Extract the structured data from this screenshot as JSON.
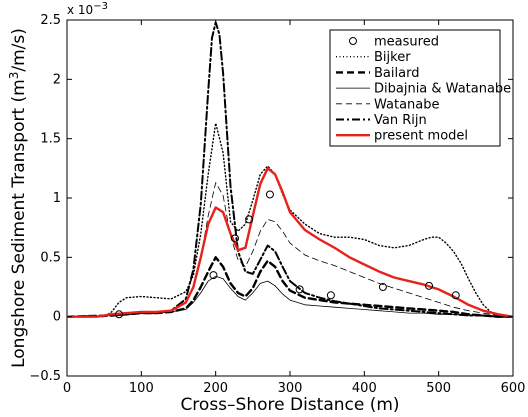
{
  "chart_data": {
    "type": "line",
    "xlabel": "Cross–Shore Distance (m)",
    "ylabel_main": "Longshore Sediment Transport (m",
    "ylabel_sup": "3",
    "ylabel_end": "/m/s)",
    "y_scale_label": "x 10",
    "y_scale_exp": "−3",
    "xlim": [
      0,
      600
    ],
    "ylim": [
      -0.5,
      2.5
    ],
    "x_ticks": [
      0,
      100,
      200,
      300,
      400,
      500,
      600
    ],
    "x_tick_labels": [
      "0",
      "100",
      "200",
      "300",
      "400",
      "500",
      "600"
    ],
    "y_ticks": [
      -0.5,
      0,
      0.5,
      1,
      1.5,
      2,
      2.5
    ],
    "y_tick_labels": [
      "−0.5",
      "0",
      "0.5",
      "1",
      "1.5",
      "2",
      "2.5"
    ],
    "grid": false,
    "legend_position": "top-right",
    "series": [
      {
        "name": "measured",
        "style": "marker",
        "color": "#000000",
        "x": [
          70,
          197,
          226,
          245,
          273,
          313,
          355,
          425,
          487,
          523
        ],
        "y": [
          0.02,
          0.35,
          0.66,
          0.82,
          1.03,
          0.23,
          0.18,
          0.25,
          0.26,
          0.18
        ]
      },
      {
        "name": "Bijker",
        "style": "dotted",
        "color": "#000000",
        "x": [
          0,
          50,
          60,
          70,
          80,
          100,
          120,
          140,
          160,
          170,
          180,
          190,
          200,
          210,
          220,
          230,
          240,
          250,
          260,
          270,
          280,
          290,
          300,
          320,
          340,
          360,
          380,
          400,
          420,
          440,
          460,
          480,
          490,
          500,
          510,
          520,
          530,
          540,
          550,
          560,
          570,
          580,
          590,
          600
        ],
        "y": [
          0,
          0,
          0.04,
          0.12,
          0.16,
          0.17,
          0.16,
          0.15,
          0.21,
          0.35,
          0.7,
          1.2,
          1.63,
          1.38,
          0.8,
          0.72,
          0.78,
          0.98,
          1.2,
          1.27,
          1.2,
          1.03,
          0.9,
          0.78,
          0.7,
          0.67,
          0.67,
          0.65,
          0.6,
          0.58,
          0.6,
          0.65,
          0.67,
          0.67,
          0.62,
          0.55,
          0.45,
          0.32,
          0.2,
          0.1,
          0.04,
          0.02,
          0.01,
          0
        ]
      },
      {
        "name": "Bailard",
        "style": "dashed-thick",
        "color": "#000000",
        "x": [
          0,
          60,
          80,
          100,
          120,
          140,
          160,
          170,
          180,
          190,
          200,
          210,
          220,
          230,
          240,
          250,
          260,
          270,
          280,
          290,
          300,
          320,
          340,
          360,
          380,
          400,
          420,
          440,
          460,
          480,
          500,
          520,
          540,
          560,
          580,
          600
        ],
        "y": [
          0,
          0.01,
          0.02,
          0.03,
          0.03,
          0.04,
          0.07,
          0.14,
          0.25,
          0.38,
          0.5,
          0.42,
          0.28,
          0.2,
          0.17,
          0.24,
          0.38,
          0.47,
          0.42,
          0.3,
          0.22,
          0.16,
          0.14,
          0.12,
          0.11,
          0.1,
          0.09,
          0.08,
          0.07,
          0.06,
          0.05,
          0.04,
          0.02,
          0.01,
          0,
          0
        ]
      },
      {
        "name": "Dibajnia & Watanabe",
        "style": "solid-thin",
        "color": "#000000",
        "x": [
          0,
          60,
          80,
          100,
          120,
          140,
          160,
          170,
          180,
          190,
          200,
          210,
          220,
          230,
          240,
          250,
          260,
          270,
          280,
          290,
          300,
          320,
          340,
          360,
          380,
          400,
          420,
          440,
          460,
          480,
          500,
          520,
          540,
          560,
          580,
          600
        ],
        "y": [
          0,
          0.01,
          0.02,
          0.03,
          0.03,
          0.04,
          0.06,
          0.12,
          0.2,
          0.3,
          0.34,
          0.32,
          0.24,
          0.17,
          0.14,
          0.2,
          0.28,
          0.3,
          0.26,
          0.19,
          0.14,
          0.1,
          0.09,
          0.08,
          0.07,
          0.06,
          0.05,
          0.04,
          0.03,
          0.03,
          0.02,
          0.02,
          0.01,
          0.01,
          0,
          0
        ]
      },
      {
        "name": "Watanabe",
        "style": "dashed-thin",
        "color": "#000000",
        "x": [
          0,
          60,
          80,
          100,
          120,
          140,
          160,
          170,
          180,
          190,
          200,
          210,
          220,
          230,
          240,
          250,
          260,
          270,
          280,
          290,
          300,
          320,
          340,
          360,
          380,
          400,
          420,
          440,
          460,
          480,
          500,
          520,
          540,
          560,
          580,
          600
        ],
        "y": [
          0,
          0.01,
          0.02,
          0.03,
          0.03,
          0.05,
          0.12,
          0.25,
          0.5,
          0.85,
          1.13,
          1.02,
          0.68,
          0.48,
          0.42,
          0.55,
          0.72,
          0.82,
          0.8,
          0.72,
          0.62,
          0.52,
          0.47,
          0.43,
          0.38,
          0.33,
          0.28,
          0.24,
          0.2,
          0.16,
          0.12,
          0.08,
          0.05,
          0.03,
          0.01,
          0
        ]
      },
      {
        "name": "Van Rijn",
        "style": "dashdot",
        "color": "#000000",
        "x": [
          0,
          60,
          80,
          100,
          120,
          140,
          160,
          170,
          180,
          190,
          195,
          200,
          205,
          210,
          220,
          230,
          240,
          250,
          260,
          270,
          280,
          290,
          300,
          320,
          340,
          360,
          380,
          400,
          420,
          440,
          460,
          480,
          500,
          520,
          540,
          560,
          580,
          600
        ],
        "y": [
          0,
          0.01,
          0.02,
          0.03,
          0.03,
          0.05,
          0.15,
          0.4,
          0.95,
          1.9,
          2.35,
          2.48,
          2.38,
          2.05,
          1.1,
          0.55,
          0.38,
          0.36,
          0.48,
          0.6,
          0.55,
          0.42,
          0.3,
          0.2,
          0.16,
          0.13,
          0.11,
          0.09,
          0.07,
          0.06,
          0.05,
          0.04,
          0.03,
          0.02,
          0.01,
          0.01,
          0,
          0
        ]
      },
      {
        "name": "present model",
        "style": "solid-thick",
        "color": "#e8211c",
        "x": [
          0,
          40,
          60,
          80,
          100,
          120,
          140,
          160,
          170,
          180,
          190,
          200,
          210,
          220,
          230,
          240,
          250,
          260,
          270,
          280,
          290,
          300,
          320,
          340,
          360,
          380,
          400,
          420,
          440,
          460,
          480,
          500,
          520,
          540,
          560,
          580,
          600
        ],
        "y": [
          0,
          0,
          0.02,
          0.03,
          0.04,
          0.04,
          0.05,
          0.12,
          0.25,
          0.5,
          0.78,
          0.92,
          0.88,
          0.7,
          0.56,
          0.58,
          0.85,
          1.12,
          1.25,
          1.2,
          1.05,
          0.88,
          0.73,
          0.65,
          0.58,
          0.5,
          0.44,
          0.38,
          0.33,
          0.3,
          0.27,
          0.23,
          0.17,
          0.1,
          0.05,
          0.02,
          0
        ]
      }
    ]
  }
}
